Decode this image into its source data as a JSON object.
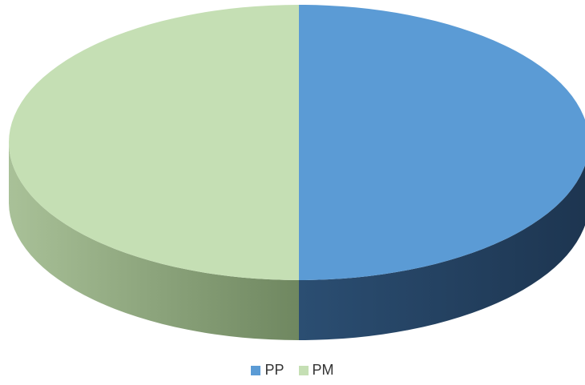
{
  "chart_data": {
    "type": "pie",
    "style": "3d",
    "title": "",
    "slices": [
      {
        "name": "PP",
        "value": 50,
        "color": "#5b9bd5",
        "side_color": "#1f3d5c"
      },
      {
        "name": "PM",
        "value": 50,
        "color": "#c5dfb4",
        "side_color": "#8aa37a"
      }
    ],
    "legend_position": "bottom",
    "legend": [
      {
        "name": "PP",
        "color": "#5b9bd5"
      },
      {
        "name": "PM",
        "color": "#c5dfb4"
      }
    ]
  }
}
